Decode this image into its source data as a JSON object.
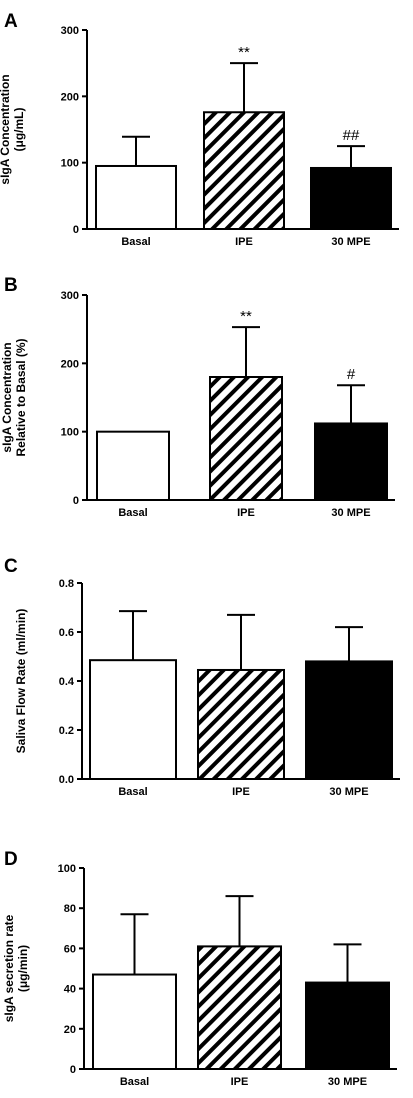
{
  "chart_data": [
    {
      "panel_label": "A",
      "type": "bar",
      "categories": [
        "Basal",
        "IPE",
        "30 MPE"
      ],
      "values": [
        95,
        176,
        92
      ],
      "errors": [
        44,
        74,
        33
      ],
      "annotations": [
        "",
        "**",
        "##"
      ],
      "patterns": [
        "white",
        "hatched",
        "black"
      ],
      "ylabel_lines": [
        "sIgA Concentration",
        "(μg/mL)"
      ],
      "yticks": [
        "0",
        "100",
        "200",
        "300"
      ],
      "ylim": [
        0,
        300
      ]
    },
    {
      "panel_label": "B",
      "type": "bar",
      "categories": [
        "Basal",
        "IPE",
        "30 MPE"
      ],
      "values": [
        100,
        180,
        112
      ],
      "errors": [
        0,
        73,
        56
      ],
      "annotations": [
        "",
        "**",
        "#"
      ],
      "patterns": [
        "white",
        "hatched",
        "black"
      ],
      "ylabel_lines": [
        "sIgA Concentration",
        "Relative to Basal (%)"
      ],
      "yticks": [
        "0",
        "100",
        "200",
        "300"
      ],
      "ylim": [
        0,
        300
      ]
    },
    {
      "panel_label": "C",
      "type": "bar",
      "categories": [
        "Basal",
        "IPE",
        "30 MPE"
      ],
      "values": [
        0.485,
        0.445,
        0.48
      ],
      "errors": [
        0.2,
        0.225,
        0.14
      ],
      "annotations": [
        "",
        "",
        ""
      ],
      "patterns": [
        "white",
        "hatched",
        "black"
      ],
      "ylabel_lines": [
        "Saliva Flow Rate (ml/min)"
      ],
      "yticks": [
        "0.0",
        "0.2",
        "0.4",
        "0.6",
        "0.8"
      ],
      "ylim": [
        0,
        0.8
      ]
    },
    {
      "panel_label": "D",
      "type": "bar",
      "categories": [
        "Basal",
        "IPE",
        "30 MPE"
      ],
      "values": [
        47,
        61,
        43
      ],
      "errors": [
        30,
        25,
        19
      ],
      "annotations": [
        "",
        "",
        ""
      ],
      "patterns": [
        "white",
        "hatched",
        "black"
      ],
      "ylabel_lines": [
        "sIgA secretion rate",
        "(μg/min)"
      ],
      "yticks": [
        "0",
        "20",
        "40",
        "60",
        "80",
        "100"
      ],
      "ylim": [
        0,
        100
      ]
    }
  ]
}
